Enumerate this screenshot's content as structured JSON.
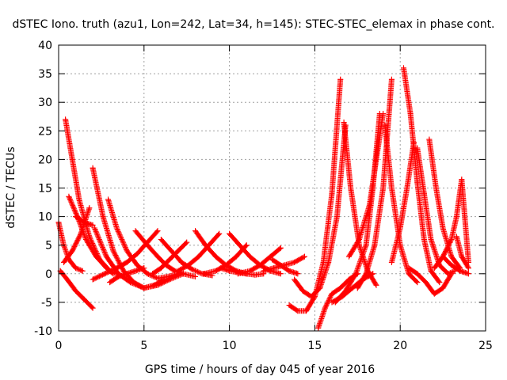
{
  "chart_data": {
    "type": "scatter",
    "title": "dSTEC Iono. truth (azu1, Lon=242, Lat=34, h=145): STEC-STEC_elemax in phase cont.",
    "xlabel": "GPS time / hours of day 045 of year 2016",
    "ylabel": "dSTEC  / TECUs",
    "xlim": [
      0,
      25
    ],
    "ylim": [
      -10,
      40
    ],
    "x_ticks": [
      0,
      5,
      10,
      15,
      20,
      25
    ],
    "y_ticks": [
      -10,
      -5,
      0,
      5,
      10,
      15,
      20,
      25,
      30,
      35,
      40
    ],
    "grid": true,
    "marker": "+",
    "color": "#ff0000",
    "series": [
      {
        "x": [
          0.0,
          0.3,
          0.6,
          1.0,
          1.4
        ],
        "y": [
          9.0,
          5.0,
          2.5,
          1.0,
          0.5
        ]
      },
      {
        "x": [
          0.4,
          0.8,
          1.2,
          1.8,
          2.4,
          3.0,
          3.4
        ],
        "y": [
          27.0,
          20.0,
          13.0,
          6.5,
          2.5,
          0.5,
          0.0
        ]
      },
      {
        "x": [
          0.1,
          0.5,
          1.0,
          1.5,
          2.0
        ],
        "y": [
          0.5,
          -1.0,
          -3.0,
          -4.5,
          -6.0
        ]
      },
      {
        "x": [
          0.6,
          1.1,
          1.6,
          2.2,
          2.8,
          3.2
        ],
        "y": [
          13.5,
          10.0,
          6.0,
          3.0,
          1.0,
          0.0
        ]
      },
      {
        "x": [
          0.3,
          0.8,
          1.3,
          1.8
        ],
        "y": [
          2.0,
          4.0,
          7.0,
          11.5
        ]
      },
      {
        "x": [
          2.0,
          2.6,
          3.2,
          3.8,
          4.4,
          5.0,
          5.6,
          6.2
        ],
        "y": [
          18.5,
          10.0,
          4.0,
          0.5,
          -1.5,
          -2.5,
          -2.0,
          -1.0
        ]
      },
      {
        "x": [
          1.0,
          1.5,
          2.0
        ],
        "y": [
          10.0,
          9.0,
          8.5
        ]
      },
      {
        "x": [
          2.1,
          2.8,
          3.5,
          4.2,
          5.0,
          5.8,
          6.5,
          7.3
        ],
        "y": [
          8.0,
          3.0,
          0.0,
          -1.5,
          -2.5,
          -2.0,
          -1.0,
          0.0
        ]
      },
      {
        "x": [
          2.9,
          3.4,
          4.0,
          4.6,
          5.2,
          5.8,
          6.4,
          7.0
        ],
        "y": [
          13.0,
          8.0,
          4.0,
          1.5,
          0.0,
          -0.8,
          -0.5,
          0.0
        ]
      },
      {
        "x": [
          2.0,
          2.7,
          3.4,
          4.0,
          4.6,
          5.2,
          5.8
        ],
        "y": [
          -1.0,
          0.0,
          1.0,
          2.0,
          3.5,
          5.5,
          7.5
        ]
      },
      {
        "x": [
          3.0,
          3.5,
          4.0,
          4.5,
          5.0
        ],
        "y": [
          -1.5,
          -0.5,
          0.0,
          0.5,
          1.0
        ]
      },
      {
        "x": [
          4.5,
          5.2,
          5.8,
          6.3,
          6.8,
          7.3,
          8.0
        ],
        "y": [
          7.5,
          5.0,
          3.0,
          1.5,
          0.5,
          0.0,
          -0.5
        ]
      },
      {
        "x": [
          5.5,
          6.0,
          6.5,
          7.0,
          7.5
        ],
        "y": [
          0.0,
          1.0,
          2.5,
          4.0,
          5.5
        ]
      },
      {
        "x": [
          6.0,
          6.6,
          7.2,
          7.8,
          8.4,
          9.0
        ],
        "y": [
          6.0,
          4.0,
          2.0,
          0.8,
          0.0,
          -0.3
        ]
      },
      {
        "x": [
          7.0,
          7.6,
          8.2,
          8.8,
          9.4
        ],
        "y": [
          0.5,
          1.5,
          3.0,
          5.0,
          7.0
        ]
      },
      {
        "x": [
          8.0,
          8.6,
          9.2,
          9.8,
          10.4,
          11.0
        ],
        "y": [
          7.5,
          5.0,
          3.0,
          1.5,
          0.5,
          0.0
        ]
      },
      {
        "x": [
          8.5,
          9.2,
          9.8,
          10.4,
          11.0
        ],
        "y": [
          0.0,
          0.5,
          1.5,
          3.0,
          5.0
        ]
      },
      {
        "x": [
          9.5,
          10.0,
          10.5,
          11.0,
          11.5,
          12.0
        ],
        "y": [
          1.0,
          0.5,
          0.2,
          0.0,
          -0.2,
          0.0
        ]
      },
      {
        "x": [
          10.0,
          10.6,
          11.2,
          11.8,
          12.4,
          13.0
        ],
        "y": [
          7.0,
          5.0,
          3.0,
          1.5,
          0.5,
          0.0
        ]
      },
      {
        "x": [
          10.5,
          11.2,
          11.8,
          12.4,
          13.0
        ],
        "y": [
          0.0,
          0.5,
          1.5,
          3.0,
          4.5
        ]
      },
      {
        "x": [
          12.0,
          12.6,
          13.2,
          13.8,
          14.4
        ],
        "y": [
          0.5,
          1.0,
          1.5,
          2.0,
          3.0
        ]
      },
      {
        "x": [
          12.5,
          13.0,
          13.5,
          14.0
        ],
        "y": [
          2.5,
          1.5,
          0.5,
          0.0
        ]
      },
      {
        "x": [
          13.5,
          14.0,
          14.5,
          15.0,
          15.5,
          16.0,
          16.5
        ],
        "y": [
          -5.5,
          -6.5,
          -6.5,
          -4.0,
          2.0,
          14.0,
          34.0
        ]
      },
      {
        "x": [
          13.8,
          14.3,
          14.8,
          15.3,
          15.8,
          16.3,
          16.8
        ],
        "y": [
          -1.0,
          -3.0,
          -4.0,
          -2.5,
          2.0,
          10.0,
          26.0
        ]
      },
      {
        "x": [
          15.2,
          15.6,
          16.0,
          16.5,
          17.0,
          17.5
        ],
        "y": [
          -9.5,
          -6.0,
          -3.5,
          -2.5,
          -1.0,
          0.0
        ]
      },
      {
        "x": [
          16.0,
          16.6,
          17.2,
          17.8,
          18.4
        ],
        "y": [
          -5.0,
          -4.0,
          -2.5,
          -1.0,
          0.0
        ]
      },
      {
        "x": [
          17.5,
          18.0,
          18.5,
          19.0,
          19.5
        ],
        "y": [
          -2.5,
          0.0,
          5.0,
          15.0,
          34.0
        ]
      },
      {
        "x": [
          16.2,
          16.8,
          17.4,
          18.0,
          18.4,
          18.8
        ],
        "y": [
          -5.0,
          -3.0,
          0.0,
          5.0,
          15.0,
          28.0
        ]
      },
      {
        "x": [
          17.0,
          17.6,
          18.2,
          18.6,
          19.0
        ],
        "y": [
          3.0,
          6.0,
          12.0,
          20.0,
          28.0
        ]
      },
      {
        "x": [
          16.7,
          17.1,
          17.6,
          18.1,
          18.6
        ],
        "y": [
          26.5,
          15.0,
          5.0,
          0.5,
          -2.0
        ]
      },
      {
        "x": [
          19.1,
          19.5,
          20.0,
          20.5,
          21.0
        ],
        "y": [
          26.0,
          15.0,
          5.0,
          0.0,
          -1.5
        ]
      },
      {
        "x": [
          20.2,
          20.6,
          21.0,
          21.4,
          21.8,
          22.3
        ],
        "y": [
          36.0,
          28.0,
          16.0,
          6.0,
          0.5,
          -1.5
        ]
      },
      {
        "x": [
          19.5,
          20.0,
          20.4,
          20.8
        ],
        "y": [
          2.0,
          8.0,
          15.0,
          23.0
        ]
      },
      {
        "x": [
          21.0,
          21.4,
          21.8,
          22.3,
          22.8,
          23.2
        ],
        "y": [
          22.0,
          14.0,
          6.0,
          1.5,
          0.0,
          0.5
        ]
      },
      {
        "x": [
          21.7,
          22.1,
          22.5,
          23.0,
          23.5
        ],
        "y": [
          23.5,
          15.0,
          8.0,
          3.0,
          1.0
        ]
      },
      {
        "x": [
          20.5,
          21.0,
          21.5,
          22.0,
          22.5,
          23.0
        ],
        "y": [
          1.0,
          0.0,
          -1.5,
          -3.5,
          -2.5,
          0.0
        ]
      },
      {
        "x": [
          22.0,
          22.5,
          23.0,
          23.3,
          23.6,
          24.0
        ],
        "y": [
          1.0,
          3.0,
          6.0,
          10.0,
          16.5,
          2.0
        ]
      },
      {
        "x": [
          22.5,
          23.0,
          23.5,
          24.0
        ],
        "y": [
          3.0,
          1.5,
          0.5,
          0.0
        ]
      },
      {
        "x": [
          23.3,
          23.6,
          24.0
        ],
        "y": [
          6.5,
          3.0,
          1.0
        ]
      }
    ]
  }
}
